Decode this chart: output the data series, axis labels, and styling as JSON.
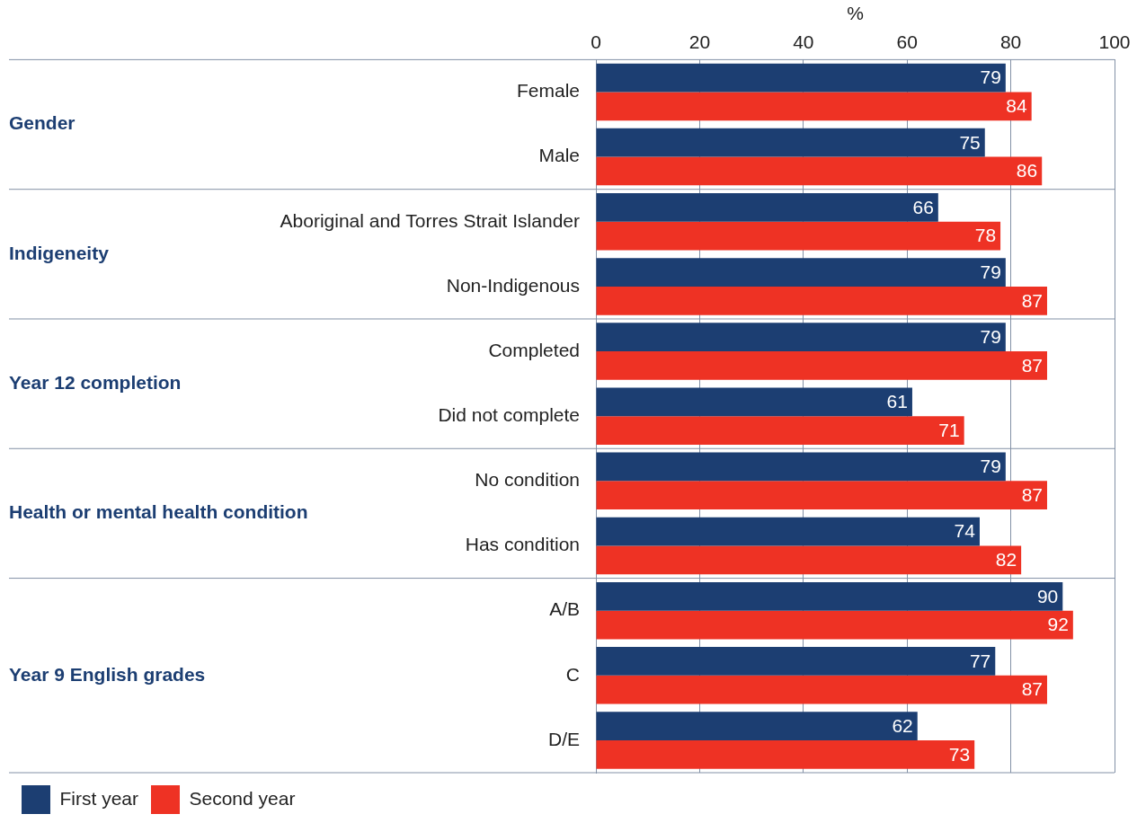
{
  "chart_data": {
    "type": "bar",
    "orientation": "horizontal",
    "xlabel": "%",
    "categories": [
      "Female",
      "Male",
      "Aboriginal and Torres Strait Islander",
      "Non-Indigenous",
      "Completed",
      "Did not complete",
      "No condition",
      "Has condition",
      "A/B",
      "C",
      "D/E"
    ],
    "series": [
      {
        "name": "First year",
        "color": "#1c3e72",
        "values": [
          79,
          75,
          66,
          79,
          79,
          61,
          79,
          74,
          90,
          77,
          62
        ]
      },
      {
        "name": "Second year",
        "color": "#ee3224",
        "values": [
          84,
          86,
          78,
          87,
          87,
          71,
          87,
          82,
          92,
          87,
          73
        ]
      }
    ],
    "xlim": [
      0,
      100
    ],
    "xticks": [
      0,
      20,
      40,
      60,
      80,
      100
    ],
    "grid": "x",
    "legend": "bottom left",
    "data_labels": true,
    "annotations": [
      "Gender",
      "Indigeneity",
      "Year 12 completion",
      "Health or mental health condition",
      "Year 9 English grades"
    ]
  }
}
